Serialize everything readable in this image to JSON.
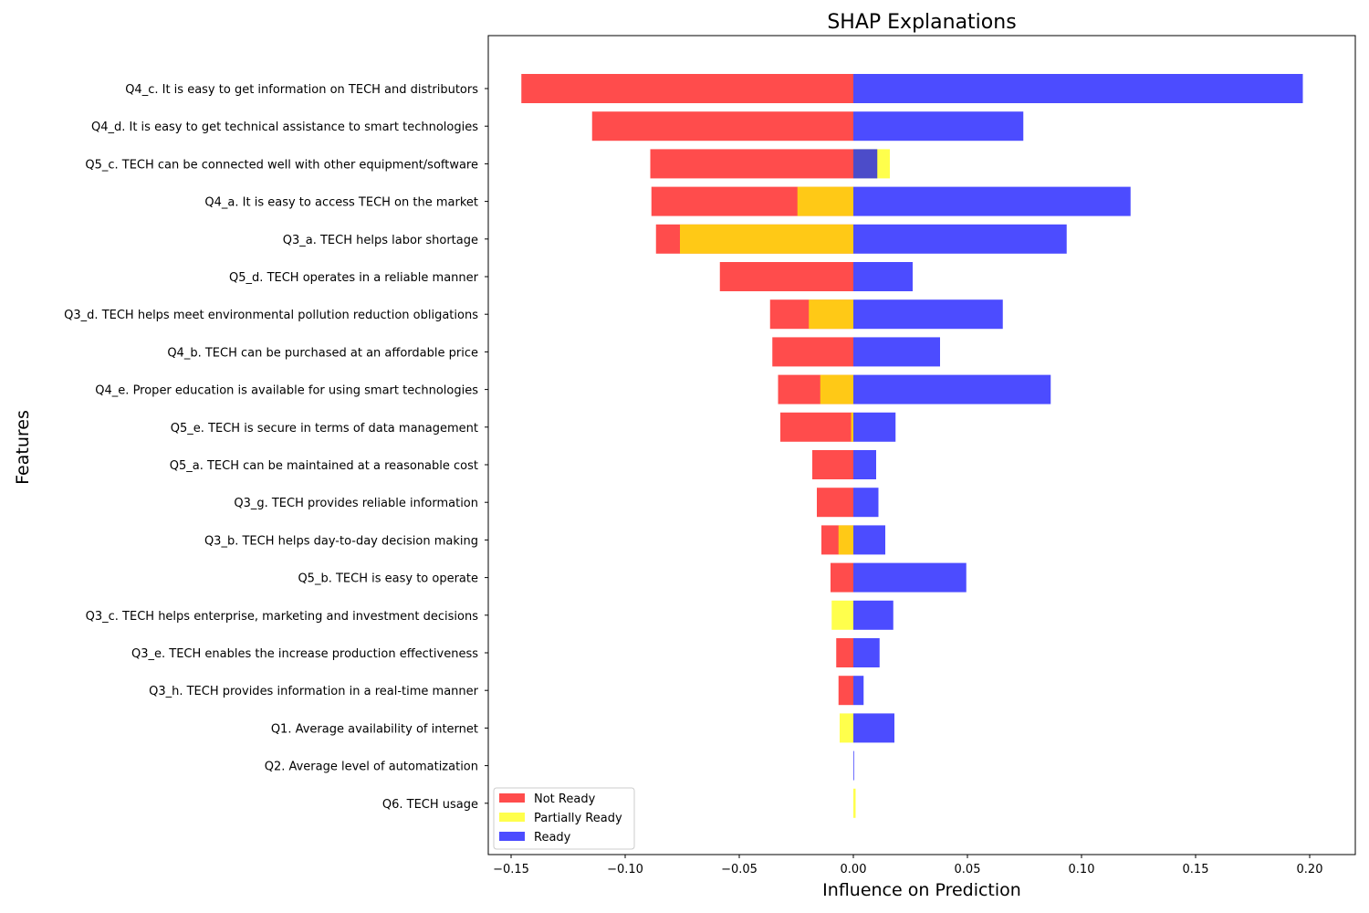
{
  "chart_data": {
    "type": "bar",
    "orientation": "horizontal",
    "stacking": "overlaid",
    "title": "SHAP Explanations",
    "xlabel": "Influence on Prediction",
    "ylabel": "Features",
    "xlim": [
      -0.16,
      0.22
    ],
    "xticks": [
      -0.15,
      -0.1,
      -0.05,
      0.0,
      0.05,
      0.1,
      0.15,
      0.2
    ],
    "xtick_labels": [
      "−0.15",
      "−0.10",
      "−0.05",
      "0.00",
      "0.05",
      "0.10",
      "0.15",
      "0.20"
    ],
    "grid": false,
    "legend_position": "lower-left",
    "categories": [
      "Q4_c. It is easy to get information on TECH and distributors",
      "Q4_d. It is easy to get technical assistance to smart technologies",
      "Q5_c. TECH can be connected well with other equipment/software",
      "Q4_a. It is easy to access TECH on the market",
      "Q3_a. TECH helps labor shortage",
      "Q5_d. TECH operates in a reliable manner",
      "Q3_d. TECH helps meet environmental pollution reduction obligations",
      "Q4_b. TECH can be purchased at an affordable price",
      "Q4_e. Proper education is available for using smart technologies",
      "Q5_e. TECH is secure in terms of data management",
      "Q5_a. TECH can be maintained at a reasonable cost",
      "Q3_g. TECH provides reliable information",
      "Q3_b. TECH helps day-to-day decision making",
      "Q5_b. TECH is easy to operate",
      "Q3_c. TECH helps enterprise, marketing and investment decisions",
      "Q3_e. TECH enables the increase production effectiveness",
      "Q3_h. TECH provides information in a real-time manner",
      "Q1. Average availability of internet",
      "Q2. Average level of automatization",
      "Q6. TECH usage"
    ],
    "series": [
      {
        "name": "Not Ready",
        "color": "#ff0000",
        "values": [
          -0.1455,
          -0.1145,
          -0.089,
          -0.0885,
          -0.0865,
          -0.0585,
          -0.0365,
          -0.0355,
          -0.033,
          -0.032,
          -0.018,
          -0.016,
          -0.014,
          -0.01,
          0.0,
          -0.0075,
          -0.0065,
          0.0,
          0.0,
          0.0
        ]
      },
      {
        "name": "Partially Ready",
        "color": "#ffff00",
        "values": [
          0.0,
          0.0,
          0.016,
          -0.0245,
          -0.076,
          0.0,
          -0.0195,
          0.0,
          -0.0145,
          -0.001,
          0.0,
          0.0,
          -0.0065,
          0.0,
          -0.0095,
          0.0,
          0.0,
          -0.006,
          0.0,
          0.001
        ]
      },
      {
        "name": "Ready",
        "color": "#0000ff",
        "values": [
          0.197,
          0.0745,
          0.0105,
          0.1215,
          0.0935,
          0.026,
          0.0655,
          0.038,
          0.0865,
          0.0185,
          0.01,
          0.011,
          0.014,
          0.0495,
          0.0175,
          0.0115,
          0.0045,
          0.018,
          0.0003,
          0.0
        ]
      }
    ]
  }
}
